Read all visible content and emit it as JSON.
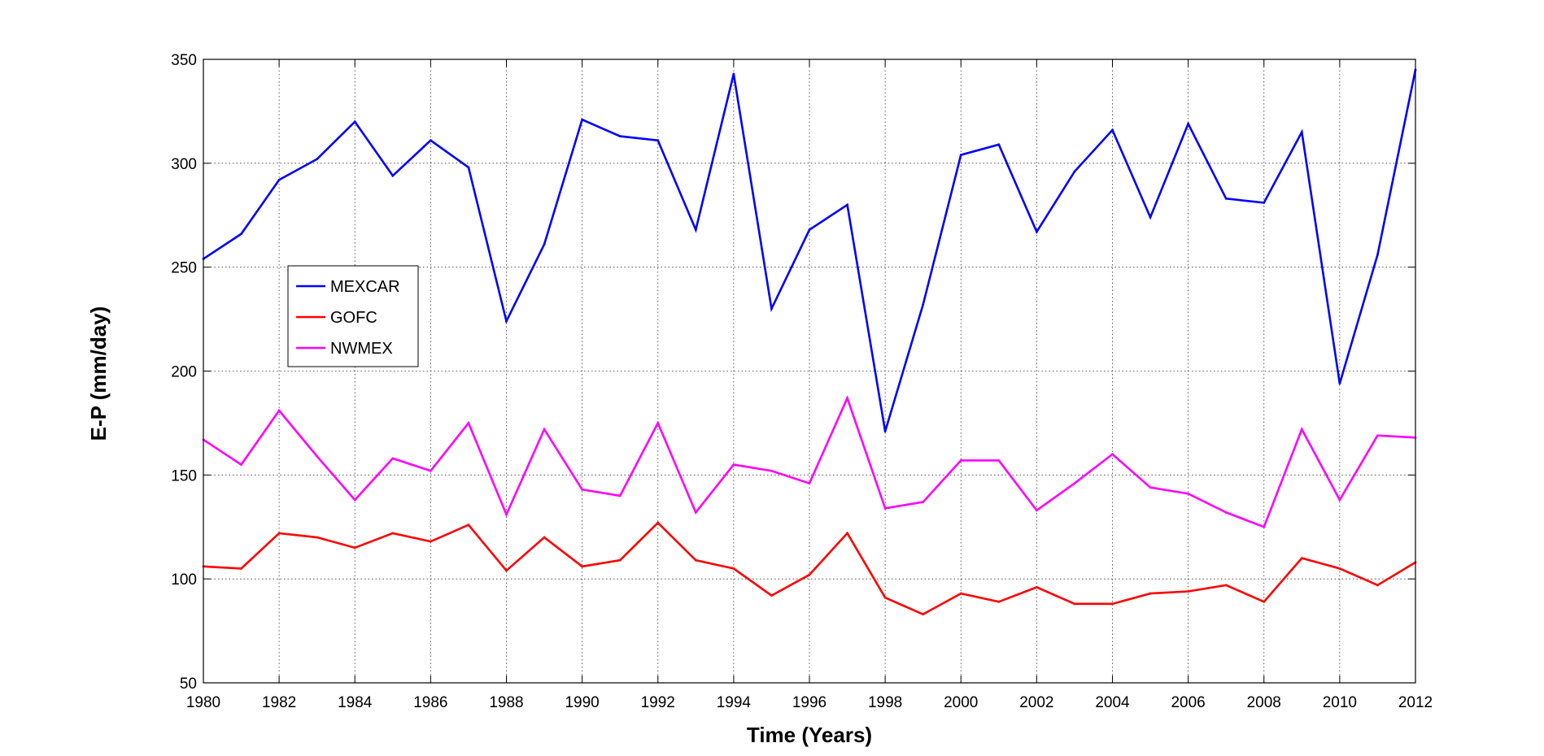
{
  "chart_data": {
    "type": "line",
    "xlabel": "Time (Years)",
    "ylabel": "E-P (mm/day)",
    "xlim": [
      1980,
      2012
    ],
    "ylim": [
      50,
      350
    ],
    "x_ticks": [
      1980,
      1982,
      1984,
      1986,
      1988,
      1990,
      1992,
      1994,
      1996,
      1998,
      2000,
      2002,
      2004,
      2006,
      2008,
      2010,
      2012
    ],
    "y_ticks": [
      50,
      100,
      150,
      200,
      250,
      300,
      350
    ],
    "grid": true,
    "grid_style": "dotted",
    "legend_position": "left-center",
    "x": [
      1980,
      1981,
      1982,
      1983,
      1984,
      1985,
      1986,
      1987,
      1988,
      1989,
      1990,
      1991,
      1992,
      1993,
      1994,
      1995,
      1996,
      1997,
      1998,
      1999,
      2000,
      2001,
      2002,
      2003,
      2004,
      2005,
      2006,
      2007,
      2008,
      2009,
      2010,
      2011,
      2012
    ],
    "series": [
      {
        "name": "MEXCAR",
        "color": "#0000ff",
        "values": [
          254,
          266,
          292,
          302,
          320,
          294,
          311,
          298,
          224,
          261,
          321,
          313,
          311,
          268,
          343,
          230,
          268,
          280,
          171,
          232,
          304,
          309,
          267,
          296,
          316,
          274,
          319,
          283,
          281,
          315,
          194,
          256,
          345
        ]
      },
      {
        "name": "GOFC",
        "color": "#ff0000",
        "values": [
          106,
          105,
          122,
          120,
          115,
          122,
          118,
          126,
          104,
          120,
          106,
          109,
          127,
          109,
          105,
          92,
          102,
          122,
          91,
          83,
          93,
          89,
          96,
          88,
          88,
          93,
          94,
          97,
          89,
          110,
          105,
          97,
          108
        ]
      },
      {
        "name": "NWMEX",
        "color": "#ff00ff",
        "values": [
          167,
          155,
          181,
          159,
          138,
          158,
          152,
          175,
          131,
          172,
          143,
          140,
          175,
          132,
          155,
          152,
          146,
          187,
          134,
          137,
          157,
          157,
          133,
          146,
          160,
          144,
          141,
          132,
          125,
          172,
          138,
          169,
          168
        ]
      }
    ]
  }
}
